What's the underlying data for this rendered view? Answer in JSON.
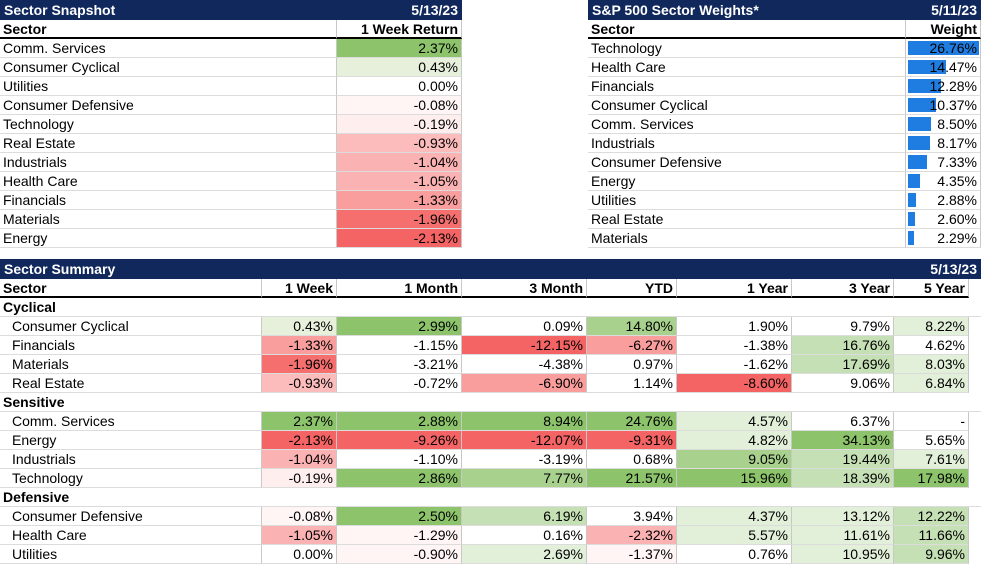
{
  "snapshot": {
    "title": "Sector Snapshot",
    "date": "5/13/23",
    "col_sector": "Sector",
    "col_return": "1 Week Return",
    "rows": [
      {
        "sector": "Comm. Services",
        "value": "2.37%",
        "color": "#8cc36b"
      },
      {
        "sector": "Consumer Cyclical",
        "value": "0.43%",
        "color": "#e6f0da"
      },
      {
        "sector": "Utilities",
        "value": "0.00%",
        "color": "#ffffff"
      },
      {
        "sector": "Consumer Defensive",
        "value": "-0.08%",
        "color": "#fff5f5"
      },
      {
        "sector": "Technology",
        "value": "-0.19%",
        "color": "#ffeeee"
      },
      {
        "sector": "Real Estate",
        "value": "-0.93%",
        "color": "#fcbcbc"
      },
      {
        "sector": "Industrials",
        "value": "-1.04%",
        "color": "#fbb2b2"
      },
      {
        "sector": "Health Care",
        "value": "-1.05%",
        "color": "#fbb2b2"
      },
      {
        "sector": "Financials",
        "value": "-1.33%",
        "color": "#f99d9d"
      },
      {
        "sector": "Materials",
        "value": "-1.96%",
        "color": "#f56f6f"
      },
      {
        "sector": "Energy",
        "value": "-2.13%",
        "color": "#f46464"
      }
    ]
  },
  "weights": {
    "title": "S&P 500 Sector Weights*",
    "date": "5/11/23",
    "col_sector": "Sector",
    "col_weight": "Weight",
    "rows": [
      {
        "sector": "Technology",
        "value": "26.76%",
        "pct": 26.76
      },
      {
        "sector": "Health Care",
        "value": "14.47%",
        "pct": 14.47
      },
      {
        "sector": "Financials",
        "value": "12.28%",
        "pct": 12.28
      },
      {
        "sector": "Consumer Cyclical",
        "value": "10.37%",
        "pct": 10.37
      },
      {
        "sector": "Comm. Services",
        "value": "8.50%",
        "pct": 8.5
      },
      {
        "sector": "Industrials",
        "value": "8.17%",
        "pct": 8.17
      },
      {
        "sector": "Consumer Defensive",
        "value": "7.33%",
        "pct": 7.33
      },
      {
        "sector": "Energy",
        "value": "4.35%",
        "pct": 4.35
      },
      {
        "sector": "Utilities",
        "value": "2.88%",
        "pct": 2.88
      },
      {
        "sector": "Real Estate",
        "value": "2.60%",
        "pct": 2.6
      },
      {
        "sector": "Materials",
        "value": "2.29%",
        "pct": 2.29
      }
    ]
  },
  "summary": {
    "title": "Sector Summary",
    "date": "5/13/23",
    "headers": [
      "Sector",
      "1 Week",
      "1 Month",
      "3 Month",
      "YTD",
      "1 Year",
      "3 Year",
      "5 Year"
    ],
    "groups": [
      {
        "name": "Cyclical",
        "rows": [
          {
            "sector": "Consumer Cyclical",
            "values": [
              "0.43%",
              "2.99%",
              "0.09%",
              "14.80%",
              "1.90%",
              "9.79%",
              "8.22%"
            ],
            "colors": [
              "#e6f0da",
              "#8cc36b",
              "#ffffff",
              "#a9d18e",
              "#ffffff",
              "#ffffff",
              "#e2efd9"
            ]
          },
          {
            "sector": "Financials",
            "values": [
              "-1.33%",
              "-1.15%",
              "-12.15%",
              "-6.27%",
              "-1.38%",
              "16.76%",
              "4.62%"
            ],
            "colors": [
              "#f99d9d",
              "#ffffff",
              "#f46464",
              "#f99d9d",
              "#ffffff",
              "#c5e0b4",
              "#ffffff"
            ]
          },
          {
            "sector": "Materials",
            "values": [
              "-1.96%",
              "-3.21%",
              "-4.38%",
              "0.97%",
              "-1.62%",
              "17.69%",
              "8.03%"
            ],
            "colors": [
              "#f56f6f",
              "#ffffff",
              "#ffffff",
              "#ffffff",
              "#ffffff",
              "#c5e0b4",
              "#e2efd9"
            ]
          },
          {
            "sector": "Real Estate",
            "values": [
              "-0.93%",
              "-0.72%",
              "-6.90%",
              "1.14%",
              "-8.60%",
              "9.06%",
              "6.84%"
            ],
            "colors": [
              "#fcbcbc",
              "#ffffff",
              "#f99d9d",
              "#ffffff",
              "#f46464",
              "#ffffff",
              "#e2efd9"
            ]
          }
        ]
      },
      {
        "name": "Sensitive",
        "rows": [
          {
            "sector": "Comm. Services",
            "values": [
              "2.37%",
              "2.88%",
              "8.94%",
              "24.76%",
              "4.57%",
              "6.37%",
              "-"
            ],
            "colors": [
              "#8cc36b",
              "#8cc36b",
              "#8cc36b",
              "#8cc36b",
              "#e2efd9",
              "#ffffff",
              "#ffffff"
            ]
          },
          {
            "sector": "Energy",
            "values": [
              "-2.13%",
              "-9.26%",
              "-12.07%",
              "-9.31%",
              "4.82%",
              "34.13%",
              "5.65%"
            ],
            "colors": [
              "#f46464",
              "#f46464",
              "#f46464",
              "#f46464",
              "#e2efd9",
              "#8cc36b",
              "#ffffff"
            ]
          },
          {
            "sector": "Industrials",
            "values": [
              "-1.04%",
              "-1.10%",
              "-3.19%",
              "0.68%",
              "9.05%",
              "19.44%",
              "7.61%"
            ],
            "colors": [
              "#fbb2b2",
              "#ffffff",
              "#ffffff",
              "#ffffff",
              "#a9d18e",
              "#c5e0b4",
              "#e2efd9"
            ]
          },
          {
            "sector": "Technology",
            "values": [
              "-0.19%",
              "2.86%",
              "7.77%",
              "21.57%",
              "15.96%",
              "18.39%",
              "17.98%"
            ],
            "colors": [
              "#ffeeee",
              "#8cc36b",
              "#a9d18e",
              "#8cc36b",
              "#8cc36b",
              "#c5e0b4",
              "#8cc36b"
            ]
          }
        ]
      },
      {
        "name": "Defensive",
        "rows": [
          {
            "sector": "Consumer Defensive",
            "values": [
              "-0.08%",
              "2.50%",
              "6.19%",
              "3.94%",
              "4.37%",
              "13.12%",
              "12.22%"
            ],
            "colors": [
              "#fff5f5",
              "#8cc36b",
              "#c5e0b4",
              "#ffffff",
              "#e2efd9",
              "#e2efd9",
              "#c5e0b4"
            ]
          },
          {
            "sector": "Health Care",
            "values": [
              "-1.05%",
              "-1.29%",
              "0.16%",
              "-2.32%",
              "5.57%",
              "11.61%",
              "11.66%"
            ],
            "colors": [
              "#fbb2b2",
              "#fff5f5",
              "#ffffff",
              "#fbb2b2",
              "#e2efd9",
              "#e2efd9",
              "#c5e0b4"
            ]
          },
          {
            "sector": "Utilities",
            "values": [
              "0.00%",
              "-0.90%",
              "2.69%",
              "-1.37%",
              "0.76%",
              "10.95%",
              "9.96%"
            ],
            "colors": [
              "#ffffff",
              "#fff5f5",
              "#e2efd9",
              "#fff5f5",
              "#ffffff",
              "#e2efd9",
              "#c5e0b4"
            ]
          }
        ]
      }
    ]
  }
}
